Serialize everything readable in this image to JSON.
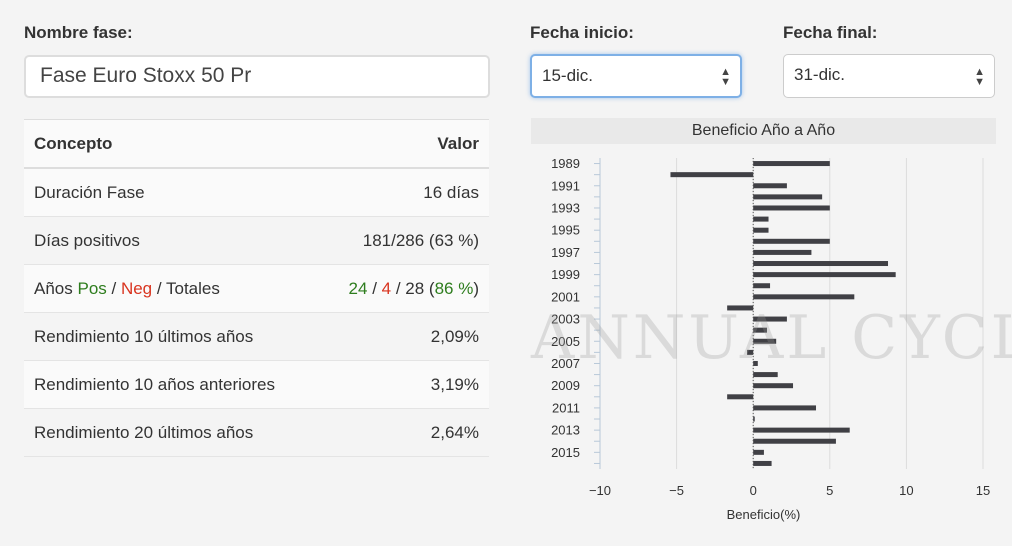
{
  "form": {
    "phase_name_label": "Nombre fase:",
    "phase_name_value": "Fase Euro Stoxx 50 Pr",
    "start_date_label": "Fecha inicio:",
    "start_date_value": "15-dic.",
    "end_date_label": "Fecha final:",
    "end_date_value": "31-dic."
  },
  "table": {
    "header": {
      "concept": "Concepto",
      "value": "Valor"
    },
    "rows": [
      {
        "concept": "Duración Fase",
        "value": "16 días"
      },
      {
        "concept": "Días positivos",
        "value": "181/286 (63 %)"
      },
      {
        "concept_parts": [
          "Años ",
          "Pos",
          " / ",
          "Neg",
          " / Totales"
        ],
        "value_parts": [
          "24",
          " / ",
          "4",
          " / 28 (",
          "86 %",
          ")"
        ]
      },
      {
        "concept": "Rendimiento 10 últimos años",
        "value": "2,09%"
      },
      {
        "concept": "Rendimiento 10 años anteriores",
        "value": "3,19%"
      },
      {
        "concept": "Rendimiento 20 últimos años",
        "value": "2,64%"
      }
    ]
  },
  "watermark": "ANNUAL CYCLES",
  "colors": {
    "bar": "#404045",
    "positive": "#2e7d1e",
    "negative": "#d9341f",
    "focus": "#7eb0e6"
  },
  "chart_data": {
    "type": "bar",
    "orientation": "horizontal",
    "title": "Beneficio Año a Año",
    "xlabel": "Beneficio(%)",
    "ylabel": "",
    "xlim": [
      -10,
      15
    ],
    "xticks": [
      "−10",
      "−5",
      "0",
      "5",
      "10",
      "15"
    ],
    "xtick_values": [
      -10,
      -5,
      0,
      5,
      10,
      15
    ],
    "ytick_labels": [
      "1989",
      "1991",
      "1993",
      "1995",
      "1997",
      "1999",
      "2001",
      "2003",
      "2005",
      "2007",
      "2009",
      "2011",
      "2013",
      "2015"
    ],
    "categories": [
      1989,
      1990,
      1991,
      1992,
      1993,
      1994,
      1995,
      1996,
      1997,
      1998,
      1999,
      2000,
      2001,
      2002,
      2003,
      2004,
      2005,
      2006,
      2007,
      2008,
      2009,
      2010,
      2011,
      2012,
      2013,
      2014,
      2015,
      2016
    ],
    "values": [
      5.0,
      -5.4,
      2.2,
      4.5,
      5.0,
      1.0,
      1.0,
      5.0,
      3.8,
      8.8,
      9.3,
      1.1,
      6.6,
      -1.7,
      2.2,
      0.9,
      1.5,
      -0.4,
      0.3,
      1.6,
      2.6,
      -1.7,
      4.1,
      0.1,
      6.3,
      5.4,
      0.7,
      1.2
    ],
    "grid": true,
    "legend": "none"
  }
}
